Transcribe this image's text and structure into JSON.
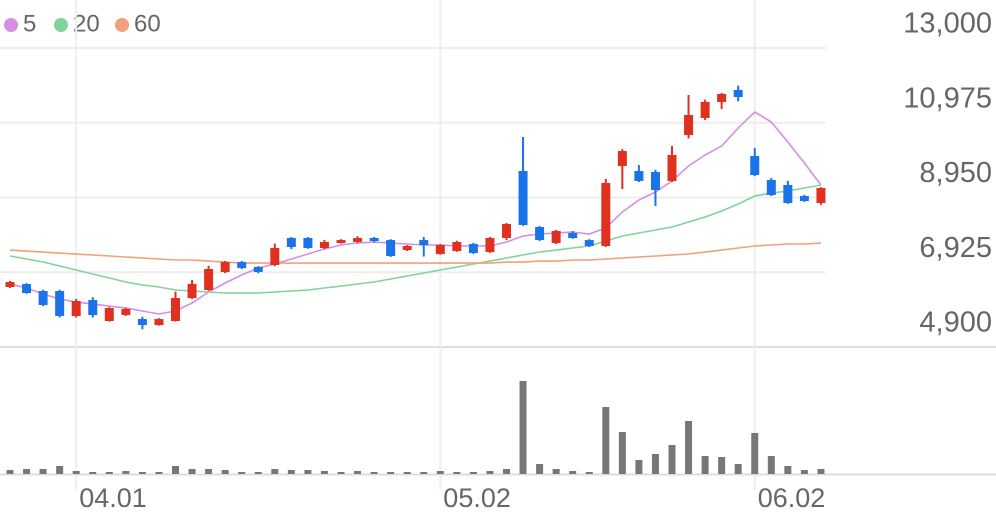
{
  "chart_data": {
    "type": "candlestick",
    "categories": [
      null,
      null,
      null,
      null,
      "04.01",
      null,
      null,
      null,
      null,
      null,
      null,
      null,
      null,
      null,
      null,
      null,
      null,
      null,
      null,
      null,
      null,
      null,
      null,
      null,
      null,
      null,
      "05.02",
      null,
      null,
      null,
      null,
      null,
      null,
      null,
      null,
      null,
      null,
      null,
      null,
      null,
      null,
      null,
      null,
      null,
      null,
      "06.02",
      null,
      null,
      null,
      null
    ],
    "open": [
      6525,
      6606,
      6417,
      6417,
      5740,
      6173,
      5604,
      5767,
      5658,
      5496,
      5604,
      6227,
      6444,
      6931,
      7202,
      7067,
      7121,
      7853,
      7853,
      7582,
      7717,
      7744,
      7853,
      7798,
      7527,
      7798,
      7419,
      7500,
      7690,
      7473,
      7853,
      9668,
      8150,
      7717,
      7988,
      7798,
      7636,
      9803,
      9668,
      9641,
      9397,
      10643,
      11104,
      11537,
      11862,
      10074,
      9424,
      9288,
      8990,
      8801
    ],
    "high": [
      6690,
      6630,
      6450,
      6450,
      6200,
      6250,
      5980,
      5960,
      5720,
      5680,
      6400,
      6720,
      7100,
      7230,
      7230,
      7090,
      7700,
      7880,
      7880,
      7800,
      7820,
      7900,
      7880,
      7820,
      7660,
      7880,
      7690,
      7780,
      7720,
      7880,
      8260,
      10589,
      8180,
      8070,
      8040,
      7820,
      9450,
      10260,
      9830,
      9700,
      10350,
      11726,
      11600,
      11780,
      11980,
      10290,
      9480,
      9400,
      9020,
      9230
    ],
    "low": [
      6500,
      6340,
      6010,
      5700,
      5700,
      5700,
      5590,
      5740,
      5380,
      5480,
      5590,
      6200,
      6420,
      6900,
      7010,
      6900,
      7090,
      7550,
      7560,
      7550,
      7700,
      7720,
      7740,
      7340,
      7500,
      7350,
      7400,
      7480,
      7420,
      7450,
      7800,
      8180,
      7770,
      7690,
      7830,
      7610,
      7610,
      9180,
      9370,
      8720,
      9370,
      10550,
      11050,
      11350,
      11560,
      9530,
      8990,
      8780,
      8830,
      8750
    ],
    "close": [
      6660,
      6363,
      6038,
      5740,
      6146,
      5767,
      5956,
      5929,
      5496,
      5658,
      6227,
      6606,
      7013,
      7202,
      7040,
      6931,
      7582,
      7609,
      7582,
      7744,
      7798,
      7853,
      7771,
      7365,
      7636,
      7663,
      7663,
      7744,
      7446,
      7853,
      8232,
      8205,
      7798,
      8042,
      7853,
      7636,
      9343,
      10209,
      9397,
      9153,
      10101,
      11185,
      11537,
      11754,
      11672,
      9560,
      9018,
      8801,
      8855,
      9207
    ],
    "volume": [
      4,
      5,
      5,
      8,
      3,
      2,
      2,
      3,
      2,
      2,
      8,
      5,
      5,
      4,
      2,
      2,
      5,
      4,
      4,
      3,
      2,
      3,
      2,
      2,
      2,
      2,
      3,
      2,
      2,
      3,
      5,
      93,
      10,
      5,
      3,
      2,
      67,
      42,
      14,
      20,
      29,
      53,
      18,
      17,
      10,
      41,
      18,
      8,
      4,
      5
    ],
    "up_color": "#e0301e",
    "down_color": "#1a73e8",
    "volume_color": "#777777",
    "series": [
      {
        "name": "5",
        "color": "#d48ee6",
        "values": [
          6607,
          6498,
          6335,
          6200,
          6118,
          6064,
          6010,
          5956,
          5875,
          5794,
          5875,
          6092,
          6390,
          6634,
          6850,
          7040,
          7148,
          7284,
          7419,
          7555,
          7663,
          7717,
          7744,
          7717,
          7690,
          7663,
          7663,
          7636,
          7636,
          7636,
          7744,
          7907,
          7961,
          7988,
          8015,
          7961,
          8124,
          8557,
          8882,
          9099,
          9397,
          9803,
          10101,
          10345,
          10832,
          11266,
          10995,
          10453,
          9884,
          9288
        ]
      },
      {
        "name": "20",
        "color": "#7fd49a",
        "values": [
          7365,
          7284,
          7202,
          7094,
          6986,
          6877,
          6769,
          6661,
          6580,
          6525,
          6444,
          6417,
          6390,
          6363,
          6363,
          6363,
          6390,
          6417,
          6444,
          6498,
          6552,
          6607,
          6661,
          6742,
          6823,
          6904,
          6986,
          7067,
          7148,
          7229,
          7311,
          7392,
          7473,
          7527,
          7582,
          7636,
          7771,
          7907,
          7988,
          8069,
          8150,
          8286,
          8422,
          8584,
          8774,
          8990,
          9071,
          9126,
          9207,
          9288
        ]
      },
      {
        "name": "60",
        "color": "#f0a07a",
        "values": [
          7527,
          7500,
          7473,
          7446,
          7419,
          7392,
          7365,
          7338,
          7311,
          7284,
          7257,
          7257,
          7229,
          7202,
          7175,
          7175,
          7175,
          7175,
          7175,
          7175,
          7175,
          7175,
          7175,
          7175,
          7175,
          7175,
          7175,
          7175,
          7175,
          7175,
          7202,
          7202,
          7229,
          7229,
          7257,
          7257,
          7284,
          7311,
          7338,
          7365,
          7392,
          7419,
          7473,
          7527,
          7582,
          7636,
          7663,
          7690,
          7690,
          7717
        ]
      }
    ],
    "ylim": [
      4900,
      13000
    ],
    "yticks": [
      {
        "value": 13000,
        "label": "13,000"
      },
      {
        "value": 10975,
        "label": "10,975"
      },
      {
        "value": 8950,
        "label": "8,950"
      },
      {
        "value": 6925,
        "label": "6,925"
      },
      {
        "value": 4900,
        "label": "4,900"
      }
    ],
    "grid": true
  }
}
